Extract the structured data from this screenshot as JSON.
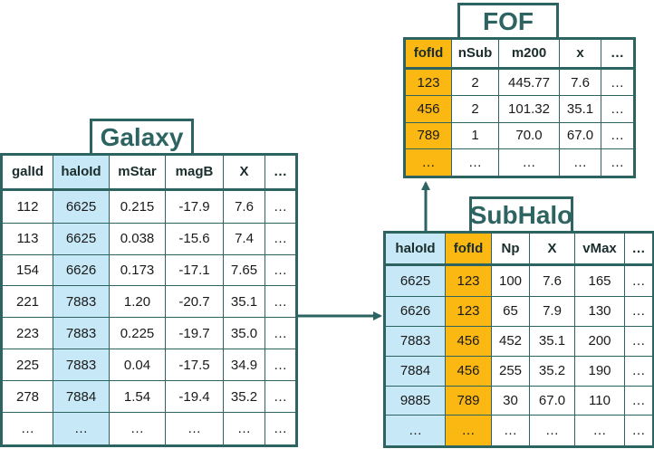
{
  "galaxy": {
    "title": "Galaxy",
    "headers": [
      "galId",
      "haloId",
      "mStar",
      "magB",
      "X",
      "…"
    ],
    "rows": [
      [
        "112",
        "6625",
        "0.215",
        "-17.9",
        "7.6",
        "…"
      ],
      [
        "113",
        "6625",
        "0.038",
        "-15.6",
        "7.4",
        "…"
      ],
      [
        "154",
        "6626",
        "0.173",
        "-17.1",
        "7.65",
        "…"
      ],
      [
        "221",
        "7883",
        "1.20",
        "-20.7",
        "35.1",
        "…"
      ],
      [
        "223",
        "7883",
        "0.225",
        "-19.7",
        "35.0",
        "…"
      ],
      [
        "225",
        "7883",
        "0.04",
        "-17.5",
        "34.9",
        "…"
      ],
      [
        "278",
        "7884",
        "1.54",
        "-19.4",
        "35.2",
        "…"
      ],
      [
        "…",
        "…",
        "…",
        "…",
        "…",
        "…"
      ]
    ]
  },
  "subhalo": {
    "title": "SubHalo",
    "headers": [
      "haloId",
      "fofId",
      "Np",
      "X",
      "vMax",
      "…"
    ],
    "rows": [
      [
        "6625",
        "123",
        "100",
        "7.6",
        "165",
        "…"
      ],
      [
        "6626",
        "123",
        "65",
        "7.9",
        "130",
        "…"
      ],
      [
        "7883",
        "456",
        "452",
        "35.1",
        "200",
        "…"
      ],
      [
        "7884",
        "456",
        "255",
        "35.2",
        "190",
        "…"
      ],
      [
        "9885",
        "789",
        "30",
        "67.0",
        "110",
        "…"
      ],
      [
        "…",
        "…",
        "…",
        "…",
        "…",
        "…"
      ]
    ]
  },
  "fof": {
    "title": "FOF",
    "headers": [
      "fofId",
      "nSub",
      "m200",
      "x",
      "…"
    ],
    "rows": [
      [
        "123",
        "2",
        "445.77",
        "7.6",
        "…"
      ],
      [
        "456",
        "2",
        "101.32",
        "35.1",
        "…"
      ],
      [
        "789",
        "1",
        "70.0",
        "67.0",
        "…"
      ],
      [
        "…",
        "…",
        "…",
        "…",
        "…"
      ]
    ]
  },
  "colors": {
    "border": "#2d6461",
    "highlight_blue": "#c7e8f6",
    "highlight_orange": "#fbb812"
  }
}
